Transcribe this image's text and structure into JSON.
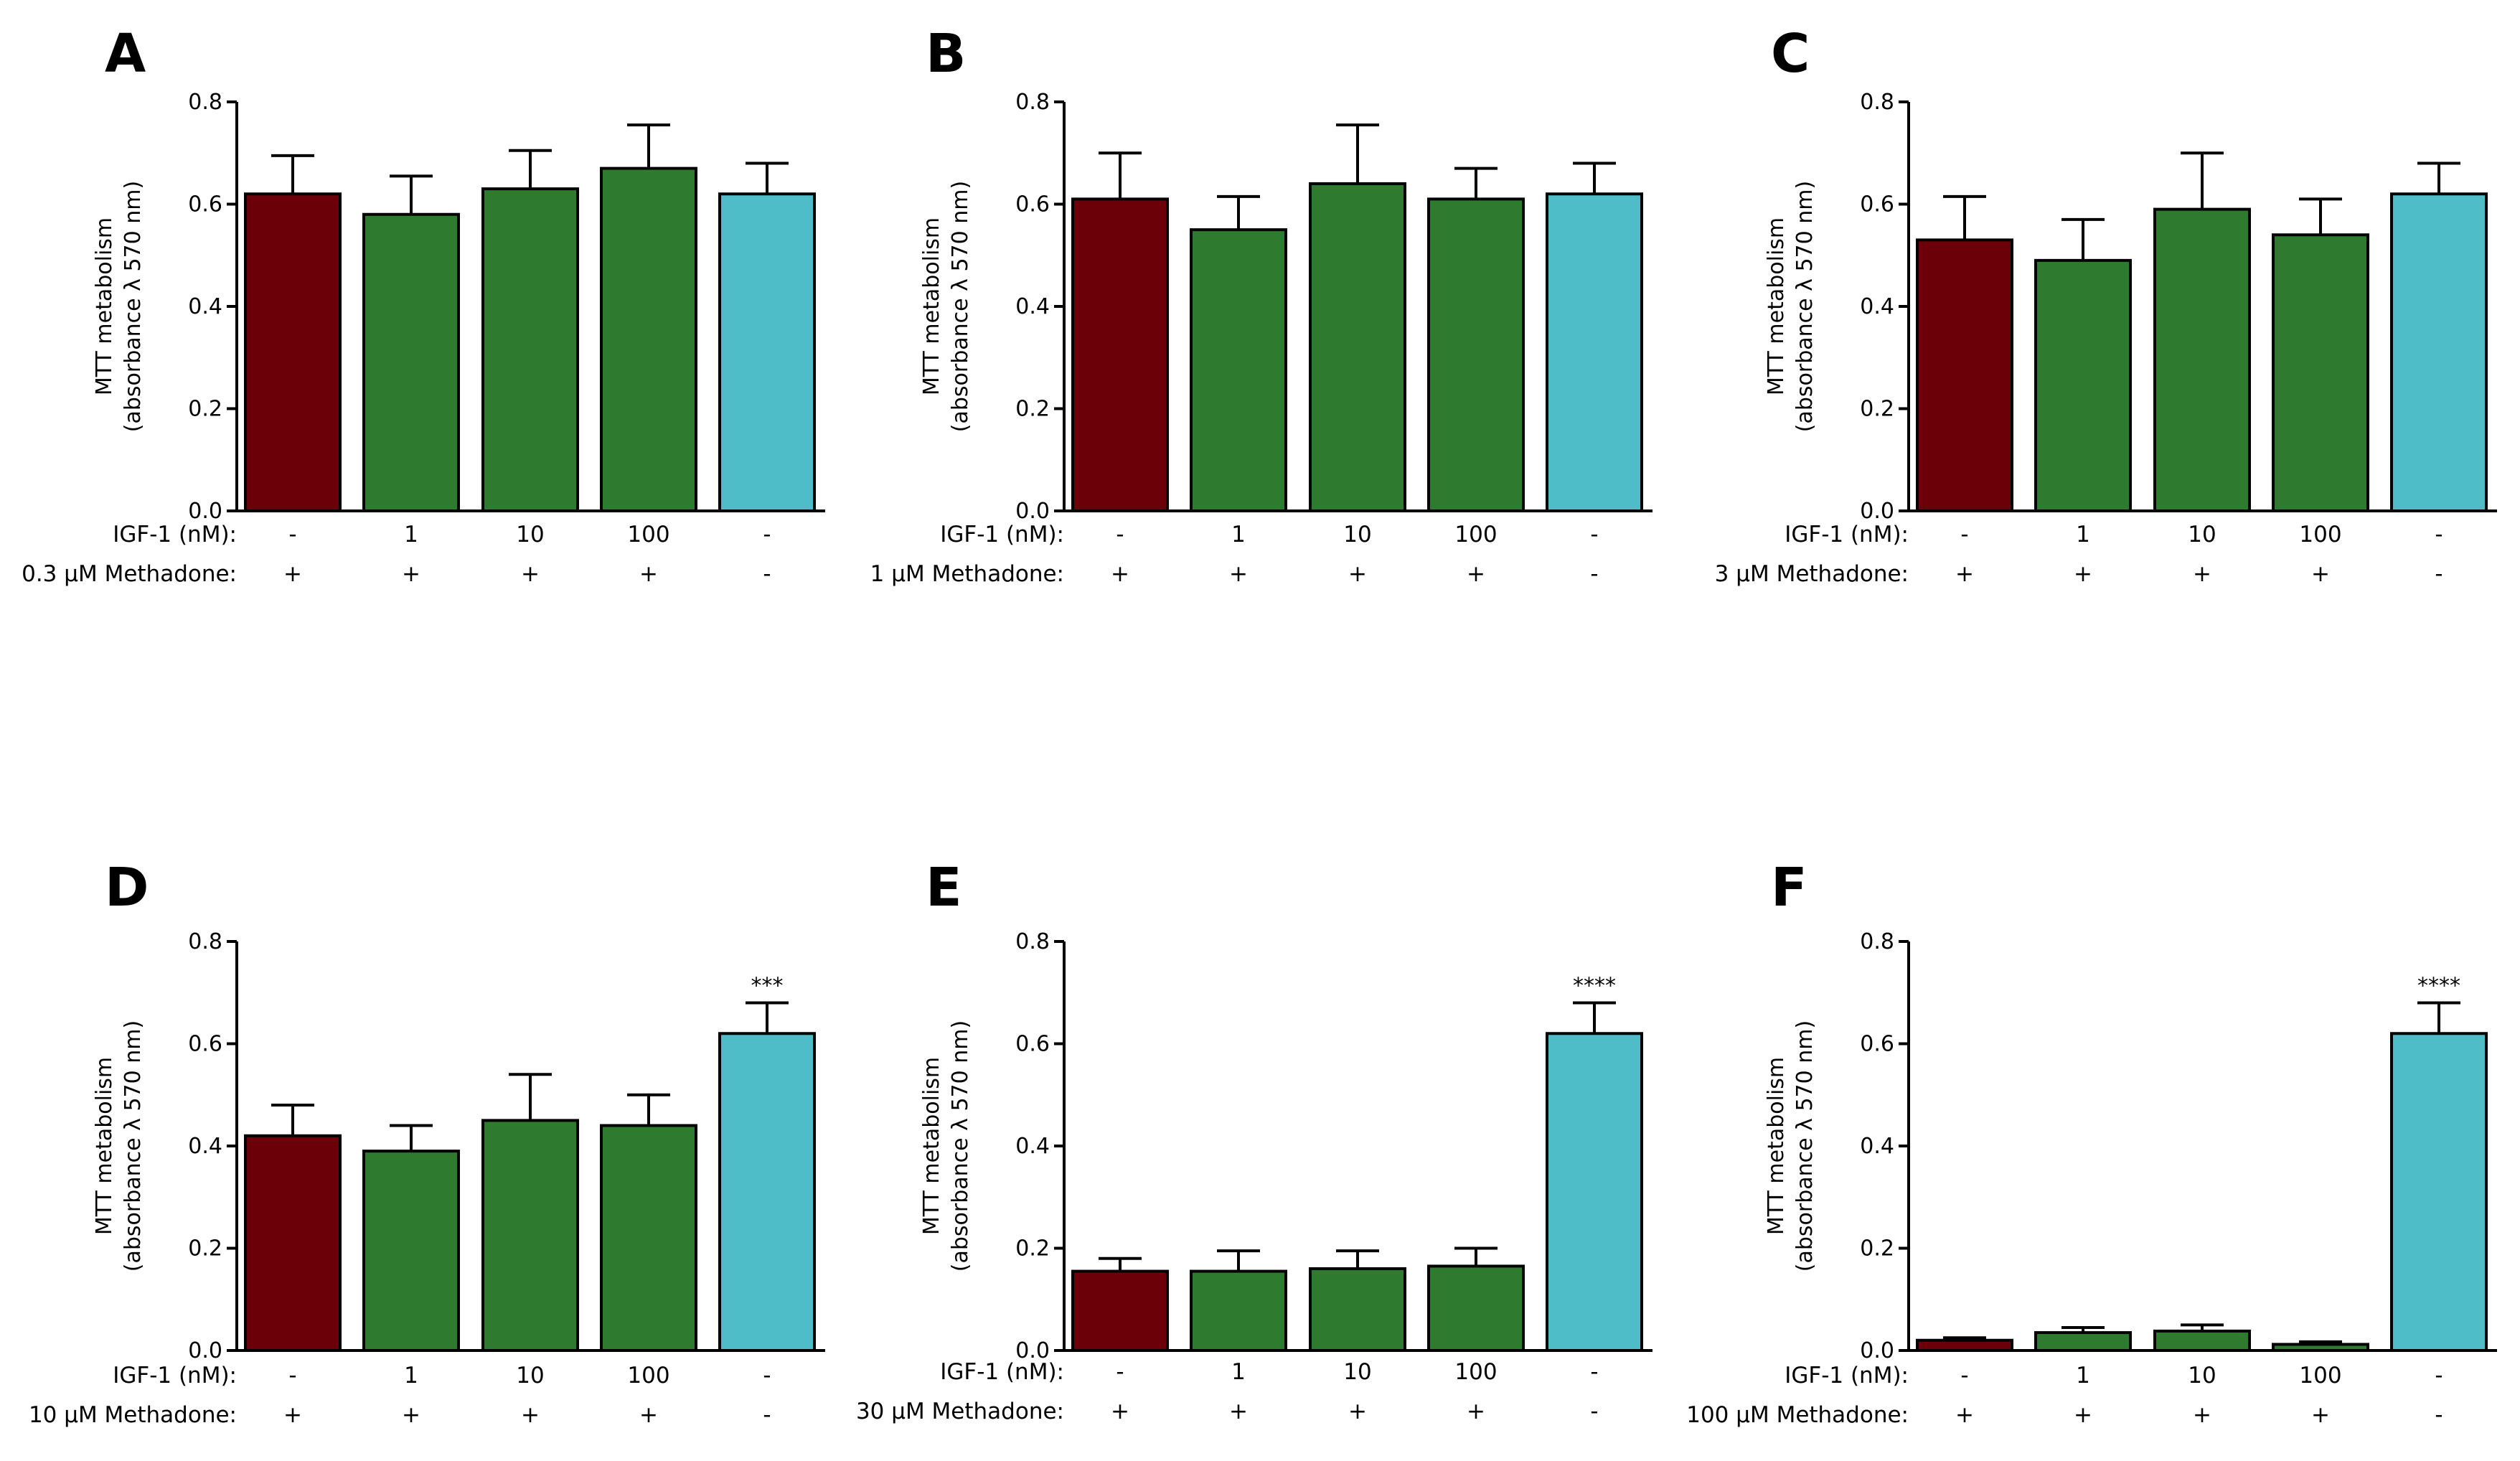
{
  "figure": {
    "bar_colors": [
      "#6b0008",
      "#2e7a2e",
      "#2e7a2e",
      "#2e7a2e",
      "#4fbdc7"
    ],
    "ylabel_lines": [
      "MTT metabolism",
      "(absorbance λ 570 nm)"
    ],
    "igf_row_label": "IGF-1 (nM):",
    "igf_values": [
      "-",
      "1",
      "10",
      "100",
      "-"
    ]
  },
  "chart_data": [
    {
      "type": "bar",
      "panel": "A",
      "methadone_label": "0.3 μM Methadone:",
      "methadone_values": [
        "+",
        "+",
        "+",
        "+",
        "-"
      ],
      "categories": [
        "IGF-1 -, Methadone +",
        "IGF-1 1, Methadone +",
        "IGF-1 10, Methadone +",
        "IGF-1 100, Methadone +",
        "IGF-1 -, Methadone -"
      ],
      "values": [
        0.62,
        0.58,
        0.63,
        0.67,
        0.62
      ],
      "errors": [
        0.075,
        0.075,
        0.075,
        0.085,
        0.06
      ],
      "significance": [
        "",
        "",
        "",
        "",
        ""
      ],
      "ylim": [
        0,
        0.8
      ],
      "yticks": [
        "0.0",
        "0.2",
        "0.4",
        "0.6",
        "0.8"
      ],
      "ylabel": "MTT metabolism (absorbance λ 570 nm)"
    },
    {
      "type": "bar",
      "panel": "B",
      "methadone_label": "1 μM Methadone:",
      "methadone_values": [
        "+",
        "+",
        "+",
        "+",
        "-"
      ],
      "categories": [
        "IGF-1 -, Methadone +",
        "IGF-1 1, Methadone +",
        "IGF-1 10, Methadone +",
        "IGF-1 100, Methadone +",
        "IGF-1 -, Methadone -"
      ],
      "values": [
        0.61,
        0.55,
        0.64,
        0.61,
        0.62
      ],
      "errors": [
        0.09,
        0.065,
        0.115,
        0.06,
        0.06
      ],
      "significance": [
        "",
        "",
        "",
        "",
        ""
      ],
      "ylim": [
        0,
        0.8
      ],
      "yticks": [
        "0.0",
        "0.2",
        "0.4",
        "0.6",
        "0.8"
      ],
      "ylabel": "MTT metabolism (absorbance λ 570 nm)"
    },
    {
      "type": "bar",
      "panel": "C",
      "methadone_label": "3 μM Methadone:",
      "methadone_values": [
        "+",
        "+",
        "+",
        "+",
        "-"
      ],
      "categories": [
        "IGF-1 -, Methadone +",
        "IGF-1 1, Methadone +",
        "IGF-1 10, Methadone +",
        "IGF-1 100, Methadone +",
        "IGF-1 -, Methadone -"
      ],
      "values": [
        0.53,
        0.49,
        0.59,
        0.54,
        0.62
      ],
      "errors": [
        0.085,
        0.08,
        0.11,
        0.07,
        0.06
      ],
      "significance": [
        "",
        "",
        "",
        "",
        ""
      ],
      "ylim": [
        0,
        0.8
      ],
      "yticks": [
        "0.0",
        "0.2",
        "0.4",
        "0.6",
        "0.8"
      ],
      "ylabel": "MTT metabolism (absorbance λ 570 nm)"
    },
    {
      "type": "bar",
      "panel": "D",
      "methadone_label": "10 μM Methadone:",
      "methadone_values": [
        "+",
        "+",
        "+",
        "+",
        "-"
      ],
      "categories": [
        "IGF-1 -, Methadone +",
        "IGF-1 1, Methadone +",
        "IGF-1 10, Methadone +",
        "IGF-1 100, Methadone +",
        "IGF-1 -, Methadone -"
      ],
      "values": [
        0.42,
        0.39,
        0.45,
        0.44,
        0.62
      ],
      "errors": [
        0.06,
        0.05,
        0.09,
        0.06,
        0.06
      ],
      "significance": [
        "",
        "",
        "",
        "",
        "***"
      ],
      "ylim": [
        0,
        0.8
      ],
      "yticks": [
        "0.0",
        "0.2",
        "0.4",
        "0.6",
        "0.8"
      ],
      "ylabel": "MTT metabolism (absorbance λ 570 nm)"
    },
    {
      "type": "bar",
      "panel": "E",
      "methadone_label": "30 μM Methadone:",
      "methadone_values": [
        "+",
        "+",
        "+",
        "+",
        "-"
      ],
      "categories": [
        "IGF-1 -, Methadone +",
        "IGF-1 1, Methadone +",
        "IGF-1 10, Methadone +",
        "IGF-1 100, Methadone +",
        "IGF-1 -, Methadone -"
      ],
      "values": [
        0.155,
        0.155,
        0.16,
        0.165,
        0.62
      ],
      "errors": [
        0.025,
        0.04,
        0.035,
        0.035,
        0.06
      ],
      "significance": [
        "",
        "",
        "",
        "",
        "****"
      ],
      "ylim": [
        0,
        0.8
      ],
      "yticks": [
        "0.0",
        "0.2",
        "0.4",
        "0.6",
        "0.8"
      ],
      "ylabel": "MTT metabolism (absorbance λ 570 nm)"
    },
    {
      "type": "bar",
      "panel": "F",
      "methadone_label": "100 μM Methadone:",
      "methadone_values": [
        "+",
        "+",
        "+",
        "+",
        "-"
      ],
      "categories": [
        "IGF-1 -, Methadone +",
        "IGF-1 1, Methadone +",
        "IGF-1 10, Methadone +",
        "IGF-1 100, Methadone +",
        "IGF-1 -, Methadone -"
      ],
      "values": [
        0.02,
        0.035,
        0.038,
        0.012,
        0.62
      ],
      "errors": [
        0.005,
        0.01,
        0.012,
        0.005,
        0.06
      ],
      "significance": [
        "",
        "",
        "",
        "",
        "****"
      ],
      "ylim": [
        0,
        0.8
      ],
      "yticks": [
        "0.0",
        "0.2",
        "0.4",
        "0.6",
        "0.8"
      ],
      "ylabel": "MTT metabolism (absorbance λ 570 nm)"
    }
  ]
}
